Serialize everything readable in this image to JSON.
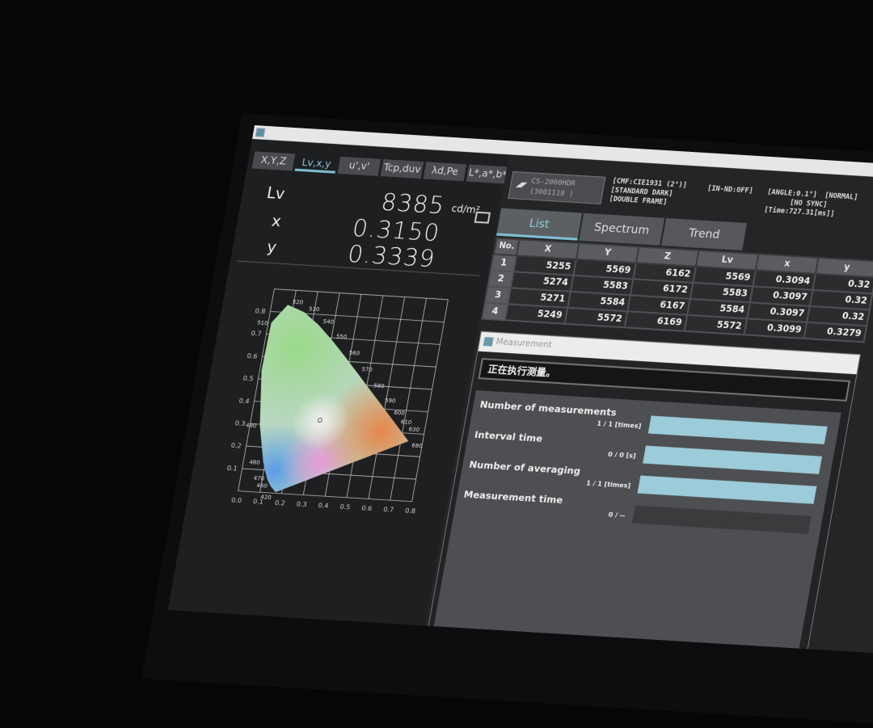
{
  "coord_tabs": [
    {
      "label": "X,Y,Z"
    },
    {
      "label": "Lv,x,y",
      "active": true
    },
    {
      "label": "u',v'"
    },
    {
      "label": "Tcp,duv"
    },
    {
      "label": "λd,Pe"
    },
    {
      "label": "L*,a*,b*"
    }
  ],
  "measurement": {
    "lv": {
      "label": "Lv",
      "value": "8385",
      "unit": "cd/m²"
    },
    "x": {
      "label": "x",
      "value": "0.3150"
    },
    "y": {
      "label": "y",
      "value": "0.3339"
    }
  },
  "device": {
    "model": "CS-2000HDR",
    "serial": "(3001118   )"
  },
  "status": {
    "cmf": "[CMF:CIE1931 (2°)]",
    "mode": "[STANDARD DARK]",
    "frame": "[DOUBLE FRAME]",
    "nd": "[IN-ND:OFF]",
    "angle": "[ANGLE:0.1°]",
    "speed": "[NORMAL]",
    "sync": "[NO SYNC]",
    "time": "[Time:727.31[ms]]"
  },
  "result_tabs": [
    {
      "label": "List",
      "active": true
    },
    {
      "label": "Spectrum"
    },
    {
      "label": "Trend"
    }
  ],
  "table": {
    "headers": [
      "No.",
      "X",
      "Y",
      "Z",
      "Lv",
      "x",
      "y"
    ],
    "rows": [
      [
        "1",
        "5255",
        "5569",
        "6162",
        "5569",
        "0.3094",
        "0.32"
      ],
      [
        "2",
        "5274",
        "5583",
        "6172",
        "5583",
        "0.3097",
        "0.32"
      ],
      [
        "3",
        "5271",
        "5584",
        "6167",
        "5584",
        "0.3097",
        "0.32"
      ],
      [
        "4",
        "5249",
        "5572",
        "6169",
        "5572",
        "0.3099",
        "0.3279"
      ]
    ]
  },
  "dialog": {
    "title": "Measurement",
    "message": "正在执行测量。",
    "items": [
      {
        "label": "Number of measurements",
        "value": "1 / 1 [times]",
        "progress": 1.0
      },
      {
        "label": "Interval time",
        "value": "0 / 0 [s]",
        "progress": 1.0
      },
      {
        "label": "Number of averaging",
        "value": "1 / 1 [times]",
        "progress": 1.0
      },
      {
        "label": "Measurement time",
        "value": "0 / --",
        "progress": 0.0
      }
    ]
  },
  "colors": {
    "accent": "#7fc0d6",
    "progress": "#9ccbd9",
    "panel": "#4e4f52"
  },
  "chart_data": {
    "type": "scatter",
    "xlim": [
      0,
      0.8
    ],
    "ylim": [
      0,
      0.9
    ],
    "grid": true,
    "x_ticks": [
      "0.0",
      "0.1",
      "0.2",
      "0.3",
      "0.4",
      "0.5",
      "0.6",
      "0.7",
      "0.8"
    ],
    "y_ticks": [
      "0.1",
      "0.2",
      "0.3",
      "0.4",
      "0.5",
      "0.6",
      "0.7",
      "0.8"
    ],
    "locus": [
      {
        "nm": "420",
        "x": 0.1714,
        "y": 0.0051
      },
      {
        "nm": "460",
        "x": 0.144,
        "y": 0.0297
      },
      {
        "nm": "470",
        "x": 0.1241,
        "y": 0.0578
      },
      {
        "nm": "480",
        "x": 0.0913,
        "y": 0.1327
      },
      {
        "nm": "490",
        "x": 0.0454,
        "y": 0.295
      },
      {
        "nm": "",
        "x": 0.0082,
        "y": 0.5384
      },
      {
        "nm": "510",
        "x": 0.0139,
        "y": 0.7502
      },
      {
        "nm": "520",
        "x": 0.0743,
        "y": 0.8338
      },
      {
        "nm": "530",
        "x": 0.1547,
        "y": 0.8059
      },
      {
        "nm": "540",
        "x": 0.2296,
        "y": 0.7543
      },
      {
        "nm": "550",
        "x": 0.3016,
        "y": 0.6923
      },
      {
        "nm": "560",
        "x": 0.3731,
        "y": 0.6245
      },
      {
        "nm": "570",
        "x": 0.4441,
        "y": 0.5547
      },
      {
        "nm": "580",
        "x": 0.5125,
        "y": 0.4866
      },
      {
        "nm": "590",
        "x": 0.5752,
        "y": 0.4242
      },
      {
        "nm": "600",
        "x": 0.627,
        "y": 0.3725
      },
      {
        "nm": "610",
        "x": 0.6658,
        "y": 0.334
      },
      {
        "nm": "630",
        "x": 0.7079,
        "y": 0.292
      },
      {
        "nm": "680",
        "x": 0.7347,
        "y": 0.2653
      }
    ],
    "point": {
      "x": 0.315,
      "y": 0.3339
    }
  }
}
